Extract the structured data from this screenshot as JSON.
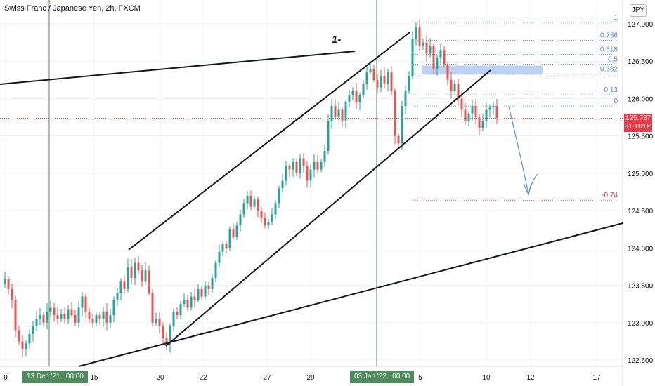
{
  "header": {
    "title": "Swiss Franc / Japanese Yen, 2h, FXCM",
    "currency_button": "JPY"
  },
  "annotation_text": "1-",
  "current_price": {
    "price": "125.737",
    "countdown": "01:16:06",
    "color": "#f23645"
  },
  "time_markers": [
    {
      "label": "13 Dec '21",
      "time": "00:00"
    },
    {
      "label": "03 Jan '22",
      "time": "00:00"
    }
  ],
  "colors": {
    "up": "#26a69a",
    "down": "#ef5350",
    "grid": "#f0f3fa",
    "fib": "#5b8dd6",
    "fib_neg": "#f23645",
    "marker_line": "#4c8c5d",
    "zone": "#a7c2ee"
  },
  "chart_data": {
    "type": "candlestick",
    "symbol": "CHFJPY",
    "interval": "2h",
    "y_axis": {
      "ticks": [
        "127.000",
        "126.500",
        "126.000",
        "125.500",
        "125.000",
        "124.500",
        "124.000",
        "123.500",
        "123.000",
        "122.500"
      ],
      "range": [
        122.4,
        127.2
      ]
    },
    "x_axis": {
      "ticks": [
        "9",
        "13 Dec '21",
        "15",
        "20",
        "22",
        "27",
        "29",
        "03 Jan '22",
        "5",
        "10",
        "12",
        "17"
      ]
    },
    "fibonacci": {
      "levels": [
        {
          "label": "1",
          "price": 127.02
        },
        {
          "label": "0.786",
          "price": 126.78
        },
        {
          "label": "0.618",
          "price": 126.59
        },
        {
          "label": "0.5",
          "price": 126.46
        },
        {
          "label": "0.382",
          "price": 126.33
        },
        {
          "label": "0.13",
          "price": 126.05
        },
        {
          "label": "0",
          "price": 125.9
        },
        {
          "label": "-0.74",
          "price": 124.64
        }
      ]
    },
    "close_path": [
      [
        0,
        123.52
      ],
      [
        5,
        123.58
      ],
      [
        10,
        123.45
      ],
      [
        15,
        123.3
      ],
      [
        20,
        122.9
      ],
      [
        25,
        122.75
      ],
      [
        30,
        122.65
      ],
      [
        35,
        122.72
      ],
      [
        40,
        122.85
      ],
      [
        45,
        122.95
      ],
      [
        50,
        123.05
      ],
      [
        55,
        123.1
      ],
      [
        60,
        123.0
      ],
      [
        65,
        123.15
      ],
      [
        70,
        123.2
      ],
      [
        75,
        123.1
      ],
      [
        80,
        123.05
      ],
      [
        85,
        123.12
      ],
      [
        90,
        123.05
      ],
      [
        95,
        123.18
      ],
      [
        100,
        123.1
      ],
      [
        105,
        123.0
      ],
      [
        110,
        123.2
      ],
      [
        115,
        123.35
      ],
      [
        120,
        123.15
      ],
      [
        125,
        123.05
      ],
      [
        130,
        123.0
      ],
      [
        135,
        123.1
      ],
      [
        140,
        123.05
      ],
      [
        145,
        123.15
      ],
      [
        150,
        123.0
      ],
      [
        155,
        123.1
      ],
      [
        160,
        123.3
      ],
      [
        165,
        123.4
      ],
      [
        170,
        123.55
      ],
      [
        175,
        123.45
      ],
      [
        180,
        123.75
      ],
      [
        185,
        123.6
      ],
      [
        190,
        123.8
      ],
      [
        195,
        123.7
      ],
      [
        200,
        123.55
      ],
      [
        205,
        123.7
      ],
      [
        210,
        123.4
      ],
      [
        215,
        123.0
      ],
      [
        220,
        123.05
      ],
      [
        225,
        122.95
      ],
      [
        230,
        122.8
      ],
      [
        235,
        122.7
      ],
      [
        240,
        122.95
      ],
      [
        245,
        123.15
      ],
      [
        250,
        123.1
      ],
      [
        255,
        123.25
      ],
      [
        260,
        123.3
      ],
      [
        265,
        123.2
      ],
      [
        270,
        123.35
      ],
      [
        275,
        123.3
      ],
      [
        280,
        123.45
      ],
      [
        285,
        123.35
      ],
      [
        290,
        123.5
      ],
      [
        295,
        123.45
      ],
      [
        300,
        123.6
      ],
      [
        305,
        123.8
      ],
      [
        310,
        123.95
      ],
      [
        315,
        124.05
      ],
      [
        320,
        124.0
      ],
      [
        325,
        124.25
      ],
      [
        330,
        124.15
      ],
      [
        335,
        124.3
      ],
      [
        340,
        124.45
      ],
      [
        345,
        124.6
      ],
      [
        350,
        124.7
      ],
      [
        355,
        124.55
      ],
      [
        360,
        124.65
      ],
      [
        365,
        124.5
      ],
      [
        370,
        124.4
      ],
      [
        375,
        124.3
      ],
      [
        380,
        124.35
      ],
      [
        385,
        124.45
      ],
      [
        390,
        124.6
      ],
      [
        395,
        124.8
      ],
      [
        400,
        124.9
      ],
      [
        405,
        125.1
      ],
      [
        410,
        125.05
      ],
      [
        415,
        125.15
      ],
      [
        420,
        125.0
      ],
      [
        425,
        125.2
      ],
      [
        430,
        125.1
      ],
      [
        435,
        124.9
      ],
      [
        440,
        125.05
      ],
      [
        445,
        125.15
      ],
      [
        450,
        125.05
      ],
      [
        455,
        125.15
      ],
      [
        460,
        125.3
      ],
      [
        465,
        125.7
      ],
      [
        470,
        125.9
      ],
      [
        475,
        125.75
      ],
      [
        480,
        125.85
      ],
      [
        485,
        125.7
      ],
      [
        490,
        125.95
      ],
      [
        495,
        126.05
      ],
      [
        500,
        126.1
      ],
      [
        505,
        125.95
      ],
      [
        510,
        126.05
      ],
      [
        515,
        126.2
      ],
      [
        520,
        126.35
      ],
      [
        525,
        126.4
      ],
      [
        530,
        126.25
      ],
      [
        535,
        126.15
      ],
      [
        540,
        126.3
      ],
      [
        545,
        126.2
      ],
      [
        550,
        126.35
      ],
      [
        555,
        126.1
      ],
      [
        560,
        125.5
      ],
      [
        565,
        125.4
      ],
      [
        570,
        125.9
      ],
      [
        575,
        126.1
      ],
      [
        580,
        126.3
      ],
      [
        585,
        126.8
      ],
      [
        590,
        126.95
      ],
      [
        595,
        126.7
      ],
      [
        600,
        126.75
      ],
      [
        605,
        126.6
      ],
      [
        610,
        126.7
      ],
      [
        615,
        126.4
      ],
      [
        620,
        126.55
      ],
      [
        625,
        126.65
      ],
      [
        630,
        126.45
      ],
      [
        635,
        126.25
      ],
      [
        640,
        126.1
      ],
      [
        645,
        126.2
      ],
      [
        650,
        126.0
      ],
      [
        655,
        125.85
      ],
      [
        660,
        125.7
      ],
      [
        665,
        125.8
      ],
      [
        670,
        125.9
      ],
      [
        675,
        125.75
      ],
      [
        680,
        125.6
      ],
      [
        685,
        125.7
      ],
      [
        690,
        125.85
      ],
      [
        695,
        125.88
      ],
      [
        700,
        125.9
      ],
      [
        705,
        125.74
      ]
    ]
  }
}
